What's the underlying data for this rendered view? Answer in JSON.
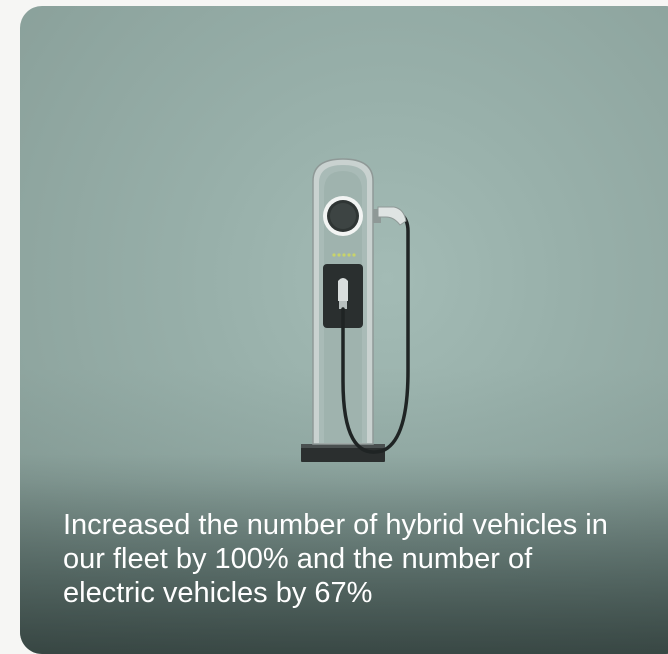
{
  "card": {
    "caption": "Increased the number of hybrid vehicles in our fleet by 100% and the number of electric vehicles by 67%"
  },
  "image": {
    "subject": "ev-charging-station",
    "background_color": "#98b0aa"
  }
}
